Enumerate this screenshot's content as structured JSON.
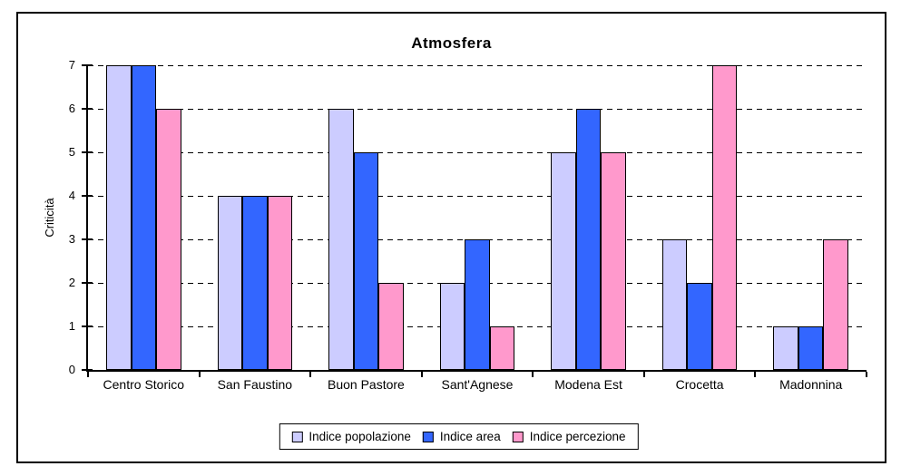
{
  "chart_data": {
    "type": "bar",
    "title": "Atmosfera",
    "xlabel": "",
    "ylabel": "Criticità",
    "categories": [
      "Centro Storico",
      "San Faustino",
      "Buon Pastore",
      "Sant'Agnese",
      "Modena Est",
      "Crocetta",
      "Madonnina"
    ],
    "series": [
      {
        "name": "Indice popolazione",
        "color": "#CCCCFF",
        "values": [
          7,
          4,
          6,
          2,
          5,
          3,
          1
        ]
      },
      {
        "name": "Indice area",
        "color": "#3366FF",
        "values": [
          7,
          4,
          5,
          3,
          6,
          2,
          1
        ]
      },
      {
        "name": "Indice percezione",
        "color": "#FF99CC",
        "values": [
          6,
          4,
          2,
          1,
          5,
          7,
          3
        ]
      }
    ],
    "ylim": [
      0,
      7
    ],
    "yticks": [
      0,
      1,
      2,
      3,
      4,
      5,
      6,
      7
    ],
    "grid": "horizontal-dashed",
    "legend_position": "bottom-center",
    "plot_background": "#FFFFFF",
    "bar_border_color": "#000000",
    "axis_color": "#000000"
  }
}
